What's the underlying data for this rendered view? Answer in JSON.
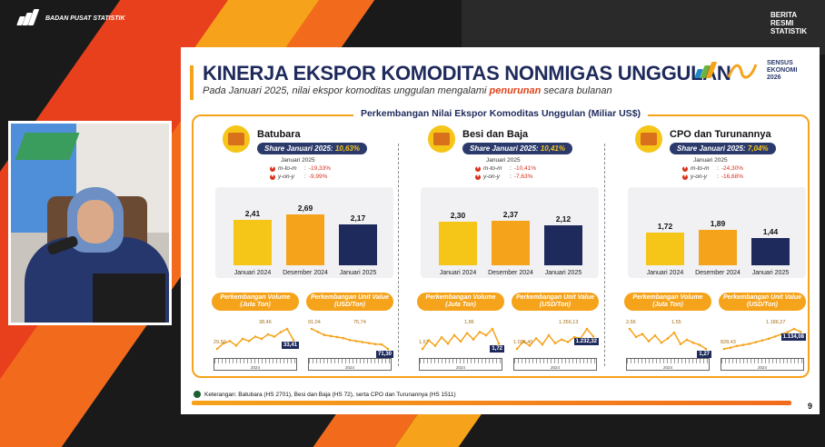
{
  "header": {
    "agency": "BADAN PUSAT STATISTIK",
    "brs": "BERITA RESMI STATISTIK"
  },
  "slide": {
    "title": "KINERJA EKSPOR KOMODITAS NONMIGAS UNGGULAN",
    "subtitle_pre": "Pada Januari 2025, nilai ekspor komoditas unggulan mengalami ",
    "subtitle_hl": "penurunan",
    "subtitle_post": " secara bulanan",
    "sensus": "SENSUS EKONOMI 2026",
    "frame_title": "Perkembangan Nilai Ekspor Komoditas Unggulan (Miliar US$)",
    "footnote": "Keterangan: Batubara (HS 2701), Besi dan Baja (HS 72), serta CPO dan Turunannya (HS 1511)",
    "page": "9",
    "colors": {
      "navy": "#1f2a5c",
      "orange": "#f5a31a",
      "yellow": "#f5c518",
      "red": "#d9301c"
    }
  },
  "commodities": [
    {
      "name": "Batubara",
      "icon": "coal-cart-icon",
      "share_label": "Share Januari 2025: ",
      "share_value": "10,63%",
      "period": "Januari 2025",
      "mtm_label": "m-to-m",
      "mtm": "-19,33%",
      "yoy_label": "y-on-y",
      "yoy": "-9,99%",
      "pill_volume": "Perkembangan Volume (Juta Ton)",
      "pill_unit": "Perkembangan Unit Value (USD/Ton)",
      "vol": {
        "first": "29,50",
        "peak": "38,46",
        "last": "33,41"
      },
      "uv": {
        "first": "91,04",
        "mid": "75,74",
        "last": "71,30"
      },
      "year": "2024"
    },
    {
      "name": "Besi dan Baja",
      "icon": "steel-coil-icon",
      "share_label": "Share Januari 2025: ",
      "share_value": "10,41%",
      "period": "Januari 2025",
      "mtm_label": "m-to-m",
      "mtm": "-10,41%",
      "yoy_label": "y-on-y",
      "yoy": "-7,63%",
      "pill_volume": "Perkembangan Volume (Juta Ton)",
      "pill_unit": "Perkembangan Unit Value (USD/Ton)",
      "vol": {
        "first": "1,67",
        "peak": "1,86",
        "last": "1,72"
      },
      "uv": {
        "first": "1.026,40",
        "peak": "1.356,13",
        "last": "1.232,32"
      },
      "year": "2024"
    },
    {
      "name": "CPO dan Turunannya",
      "icon": "palm-oil-icon",
      "share_label": "Share Januari 2025: ",
      "share_value": "7,04%",
      "period": "Januari 2025",
      "mtm_label": "m-to-m",
      "mtm": "-24,30%",
      "yoy_label": "y-on-y",
      "yoy": "-16,68%",
      "pill_volume": "Perkembangan Volume (Juta Ton)",
      "pill_unit": "Perkembangan Unit Value (USD/Ton)",
      "vol": {
        "first": "2,66",
        "peak": "1,55",
        "last": "1,27"
      },
      "uv": {
        "first": "828,43",
        "peak": "1.186,27",
        "last": "1.134,08"
      },
      "year": "2024"
    }
  ],
  "chart_data": [
    {
      "type": "bar",
      "title": "Batubara",
      "categories": [
        "Januari 2024",
        "Desember 2024",
        "Januari 2025"
      ],
      "values": [
        2.41,
        2.69,
        2.17
      ],
      "labels": [
        "2,41",
        "2,69",
        "2,17"
      ],
      "colors": [
        "#f5c518",
        "#f5a31a",
        "#1f2a5c"
      ],
      "ylim": [
        0,
        3
      ]
    },
    {
      "type": "bar",
      "title": "Besi dan Baja",
      "categories": [
        "Januari 2024",
        "Desember 2024",
        "Januari 2025"
      ],
      "values": [
        2.3,
        2.37,
        2.12
      ],
      "labels": [
        "2,30",
        "2,37",
        "2,12"
      ],
      "colors": [
        "#f5c518",
        "#f5a31a",
        "#1f2a5c"
      ],
      "ylim": [
        0,
        3
      ]
    },
    {
      "type": "bar",
      "title": "CPO dan Turunannya",
      "categories": [
        "Januari 2024",
        "Desember 2024",
        "Januari 2025"
      ],
      "values": [
        1.72,
        1.89,
        1.44
      ],
      "labels": [
        "1,72",
        "1,89",
        "1,44"
      ],
      "colors": [
        "#f5c518",
        "#f5a31a",
        "#1f2a5c"
      ],
      "ylim": [
        0,
        3
      ]
    },
    {
      "type": "line",
      "title": "Batubara volume",
      "values": [
        29.5,
        32,
        33,
        31,
        34,
        33,
        35,
        34,
        36,
        35,
        37,
        38.46,
        33.41
      ]
    },
    {
      "type": "line",
      "title": "Batubara unit value",
      "values": [
        91.04,
        88,
        85,
        84,
        83,
        82,
        80,
        79,
        78,
        77,
        76,
        75.74,
        71.3
      ]
    },
    {
      "type": "line",
      "title": "Besi dan Baja volume",
      "values": [
        1.67,
        1.75,
        1.7,
        1.78,
        1.72,
        1.8,
        1.74,
        1.82,
        1.76,
        1.83,
        1.8,
        1.86,
        1.72
      ]
    },
    {
      "type": "line",
      "title": "Besi dan Baja unit value",
      "values": [
        1026.4,
        1150,
        1080,
        1200,
        1100,
        1250,
        1120,
        1180,
        1140,
        1220,
        1200,
        1356.13,
        1232.32
      ]
    },
    {
      "type": "line",
      "title": "CPO volume",
      "values": [
        2.66,
        2.1,
        2.3,
        1.8,
        2.2,
        1.7,
        2.0,
        2.4,
        1.6,
        1.9,
        1.7,
        1.55,
        1.27
      ]
    },
    {
      "type": "line",
      "title": "CPO unit value",
      "values": [
        828.43,
        850,
        880,
        900,
        920,
        950,
        980,
        1010,
        1050,
        1090,
        1130,
        1186.27,
        1134.08
      ]
    }
  ]
}
